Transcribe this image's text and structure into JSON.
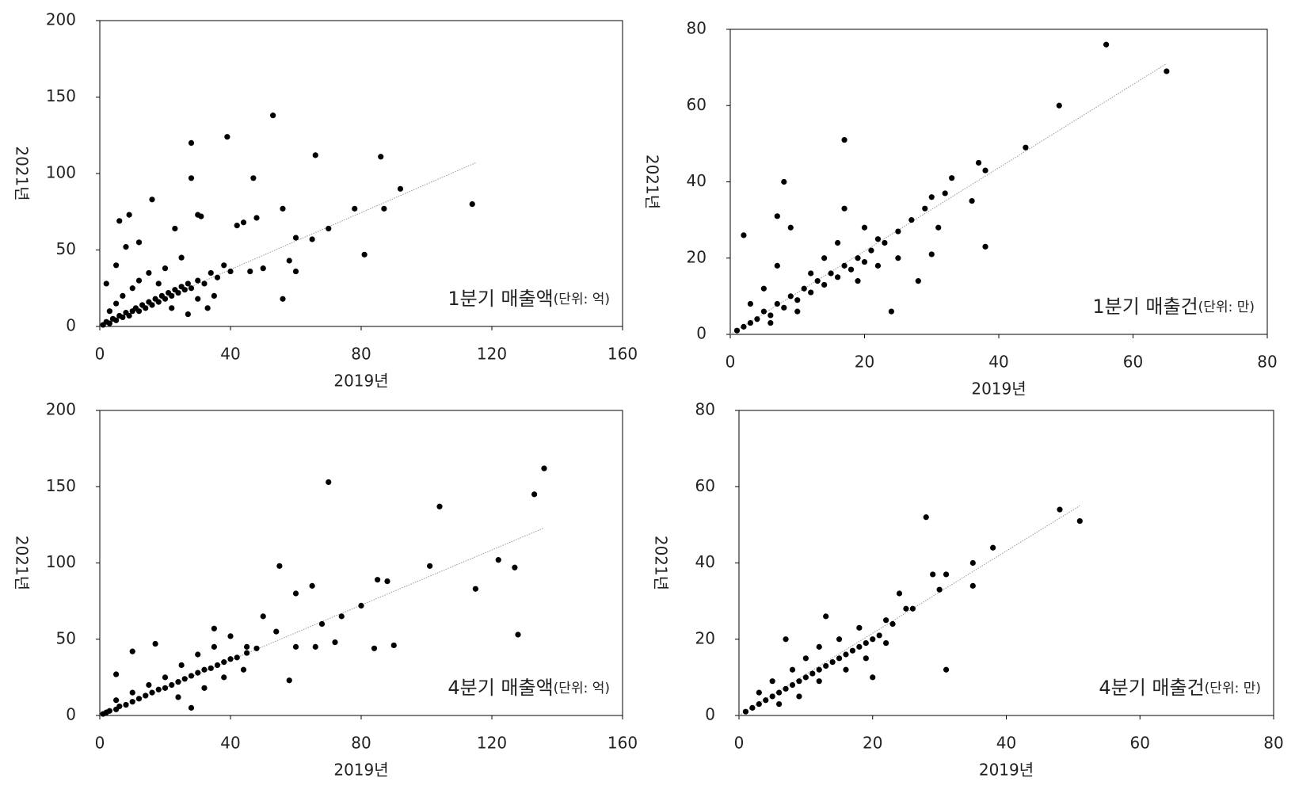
{
  "chart_data": [
    {
      "type": "scatter",
      "annotation": "1분기 매출액",
      "annotation_unit": "(단위: 억)",
      "xlabel": "2019년",
      "ylabel": "2021년",
      "xlim": [
        0,
        160
      ],
      "ylim": [
        0,
        200
      ],
      "xticks": [
        0,
        40,
        80,
        120,
        160
      ],
      "yticks": [
        0,
        50,
        100,
        150,
        200
      ],
      "color": "#000000",
      "x": [
        28,
        39,
        53,
        28,
        47,
        66,
        86,
        92,
        114,
        87,
        78,
        81,
        56,
        16,
        6,
        9,
        30,
        31,
        44,
        48,
        42,
        23,
        65,
        60,
        70,
        56,
        60,
        58,
        50,
        46,
        2,
        5,
        8,
        12,
        1,
        2,
        3,
        4,
        5,
        6,
        7,
        8,
        9,
        10,
        11,
        12,
        13,
        14,
        15,
        16,
        17,
        18,
        19,
        20,
        21,
        22,
        23,
        24,
        25,
        26,
        27,
        28,
        30,
        32,
        34,
        36,
        38,
        40,
        3,
        5,
        7,
        10,
        12,
        15,
        18,
        20,
        25,
        22,
        27,
        33,
        35,
        30
      ],
      "y": [
        120,
        124,
        138,
        97,
        97,
        112,
        111,
        90,
        80,
        77,
        77,
        47,
        77,
        83,
        69,
        73,
        73,
        72,
        68,
        71,
        66,
        64,
        57,
        58,
        64,
        18,
        36,
        43,
        38,
        36,
        28,
        40,
        52,
        55,
        1,
        3,
        2,
        5,
        4,
        7,
        6,
        9,
        7,
        10,
        12,
        10,
        14,
        12,
        16,
        14,
        18,
        16,
        20,
        18,
        22,
        20,
        24,
        22,
        26,
        24,
        28,
        25,
        30,
        28,
        35,
        32,
        40,
        36,
        10,
        15,
        20,
        25,
        30,
        35,
        28,
        38,
        45,
        12,
        8,
        12,
        20,
        18
      ],
      "trendline": {
        "color": "#999999",
        "x": [
          0,
          115
        ],
        "y": [
          0,
          107
        ]
      }
    },
    {
      "type": "scatter",
      "annotation": "1분기 매출건",
      "annotation_unit": "(단위: 만)",
      "xlabel": "2019년",
      "ylabel": "2021년",
      "xlim": [
        0,
        80
      ],
      "ylim": [
        0,
        80
      ],
      "xticks": [
        0,
        20,
        40,
        60,
        80
      ],
      "yticks": [
        0,
        20,
        40,
        60,
        80
      ],
      "color": "#000000",
      "x": [
        56,
        65,
        49,
        44,
        17,
        8,
        38,
        37,
        33,
        36,
        38,
        24,
        28,
        30,
        31,
        2,
        7,
        9,
        17,
        20,
        22,
        25,
        27,
        29,
        30,
        32,
        1,
        2,
        3,
        4,
        5,
        6,
        7,
        8,
        9,
        10,
        11,
        12,
        13,
        14,
        15,
        16,
        17,
        18,
        19,
        20,
        21,
        23,
        3,
        5,
        7,
        6,
        10,
        12,
        14,
        16,
        19,
        22,
        25
      ],
      "y": [
        76,
        69,
        60,
        49,
        51,
        40,
        43,
        45,
        41,
        35,
        23,
        6,
        14,
        21,
        28,
        26,
        31,
        28,
        33,
        28,
        25,
        27,
        30,
        33,
        36,
        37,
        1,
        2,
        3,
        4,
        6,
        5,
        8,
        7,
        10,
        9,
        12,
        11,
        14,
        13,
        16,
        15,
        18,
        17,
        20,
        19,
        22,
        24,
        8,
        12,
        18,
        3,
        6,
        16,
        20,
        24,
        14,
        18,
        20
      ],
      "trendline": {
        "color": "#999999",
        "x": [
          0,
          65
        ],
        "y": [
          0,
          71
        ]
      }
    },
    {
      "type": "scatter",
      "annotation": "4분기 매출액",
      "annotation_unit": "(단위: 억)",
      "xlabel": "2019년",
      "ylabel": "2021년",
      "xlim": [
        0,
        160
      ],
      "ylim": [
        0,
        200
      ],
      "xticks": [
        0,
        40,
        80,
        120,
        160
      ],
      "yticks": [
        0,
        50,
        100,
        150,
        200
      ],
      "color": "#000000",
      "x": [
        70,
        104,
        133,
        136,
        101,
        122,
        127,
        115,
        128,
        55,
        84,
        90,
        88,
        85,
        80,
        65,
        60,
        74,
        68,
        60,
        54,
        50,
        45,
        40,
        35,
        17,
        10,
        5,
        58,
        66,
        72,
        1,
        2,
        3,
        5,
        6,
        8,
        10,
        12,
        14,
        16,
        18,
        20,
        22,
        24,
        26,
        28,
        30,
        32,
        34,
        36,
        38,
        40,
        42,
        45,
        48,
        5,
        10,
        15,
        20,
        25,
        30,
        35,
        28,
        24,
        32,
        38,
        44
      ],
      "y": [
        153,
        137,
        145,
        162,
        98,
        102,
        97,
        83,
        53,
        98,
        44,
        46,
        88,
        89,
        72,
        85,
        80,
        65,
        60,
        45,
        55,
        65,
        45,
        52,
        57,
        47,
        42,
        27,
        23,
        45,
        48,
        1,
        2,
        3,
        4,
        6,
        7,
        9,
        11,
        13,
        15,
        17,
        18,
        20,
        22,
        24,
        26,
        28,
        30,
        31,
        33,
        35,
        37,
        38,
        41,
        44,
        10,
        15,
        20,
        25,
        33,
        40,
        45,
        5,
        12,
        18,
        25,
        30
      ],
      "trendline": {
        "color": "#999999",
        "x": [
          0,
          136
        ],
        "y": [
          0,
          123
        ]
      }
    },
    {
      "type": "scatter",
      "annotation": "4분기 매출건",
      "annotation_unit": "(단위: 만)",
      "xlabel": "2019년",
      "ylabel": "2021년",
      "xlim": [
        0,
        80
      ],
      "ylim": [
        0,
        80
      ],
      "xticks": [
        0,
        20,
        40,
        60,
        80
      ],
      "yticks": [
        0,
        20,
        40,
        60,
        80
      ],
      "color": "#000000",
      "x": [
        28,
        48,
        51,
        38,
        35,
        35,
        31,
        31,
        20,
        29,
        30,
        25,
        24,
        22,
        13,
        7,
        6,
        1,
        2,
        3,
        4,
        5,
        6,
        7,
        8,
        9,
        10,
        11,
        12,
        13,
        14,
        15,
        16,
        17,
        18,
        19,
        20,
        21,
        23,
        26,
        3,
        5,
        8,
        10,
        12,
        15,
        18,
        9,
        12,
        16,
        19,
        22
      ],
      "y": [
        52,
        54,
        51,
        44,
        40,
        34,
        37,
        12,
        10,
        37,
        33,
        28,
        32,
        25,
        26,
        20,
        3,
        1,
        2,
        3,
        4,
        5,
        6,
        7,
        8,
        9,
        10,
        11,
        12,
        13,
        14,
        15,
        16,
        17,
        18,
        19,
        20,
        21,
        24,
        28,
        6,
        9,
        12,
        15,
        18,
        20,
        23,
        5,
        9,
        12,
        15,
        19
      ],
      "trendline": {
        "color": "#999999",
        "x": [
          0,
          51
        ],
        "y": [
          0,
          55
        ]
      }
    }
  ]
}
